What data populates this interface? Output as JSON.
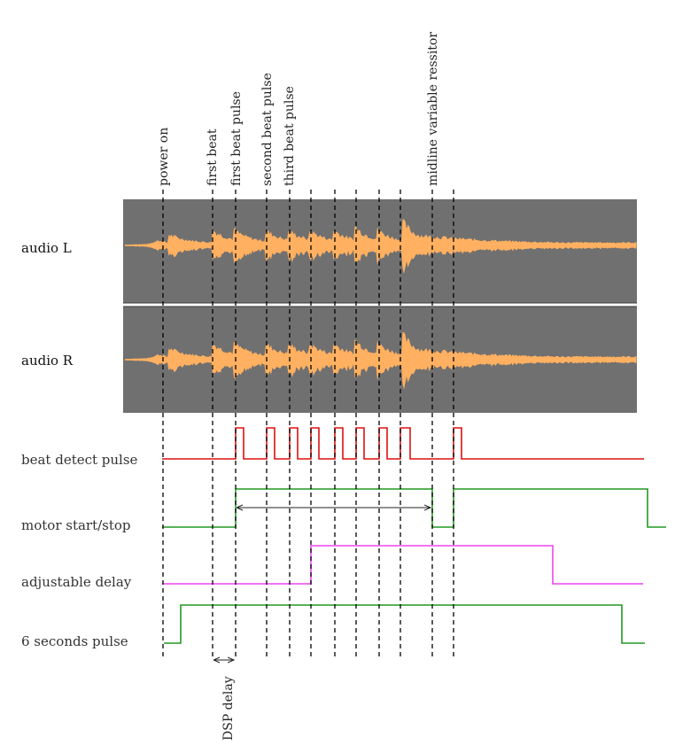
{
  "events": [
    {
      "id": "power_on",
      "label": "power on"
    },
    {
      "id": "first_beat",
      "label": "first beat"
    },
    {
      "id": "first_beat_pulse",
      "label": "first beat pulse"
    },
    {
      "id": "second_beat_pulse",
      "label": "second beat pulse"
    },
    {
      "id": "third_beat_pulse",
      "label": "third beat pulse"
    },
    {
      "id": "midline_variable_ressitor",
      "label": "midline variable ressitor"
    }
  ],
  "tracks": {
    "audio_l": {
      "label": "audio L"
    },
    "audio_r": {
      "label": "audio R"
    },
    "beat_detect_pulse": {
      "label": "beat detect pulse",
      "color": "#dd1111"
    },
    "motor_start_stop": {
      "label": "motor start/stop",
      "color": "#229922"
    },
    "adjustable_delay": {
      "label": "adjustable delay",
      "color": "#ee44ee"
    },
    "six_seconds_pulse": {
      "label": "6 seconds pulse",
      "color": "#229922"
    }
  },
  "annotations": {
    "dsp_delay": "DSP delay"
  },
  "colors": {
    "waveform_bg": "#707070",
    "waveform": "#ffb060",
    "waveform_light": "#ffc987",
    "guide_line": "#000000"
  }
}
